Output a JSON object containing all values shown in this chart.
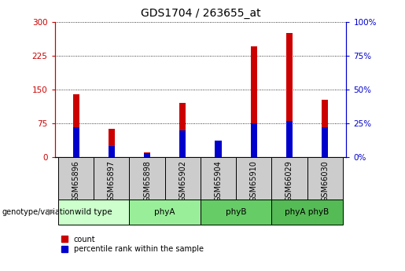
{
  "title": "GDS1704 / 263655_at",
  "samples": [
    "GSM65896",
    "GSM65897",
    "GSM65898",
    "GSM65902",
    "GSM65904",
    "GSM65910",
    "GSM66029",
    "GSM66030"
  ],
  "count_values": [
    140,
    62,
    10,
    120,
    5,
    245,
    275,
    127
  ],
  "percentile_values": [
    22,
    8,
    3,
    20,
    12,
    25,
    27,
    22
  ],
  "groups": [
    {
      "label": "wild type",
      "start": 0,
      "end": 2,
      "color": "#ccffcc"
    },
    {
      "label": "phyA",
      "start": 2,
      "end": 4,
      "color": "#99ee99"
    },
    {
      "label": "phyB",
      "start": 4,
      "end": 6,
      "color": "#66cc66"
    },
    {
      "label": "phyA phyB",
      "start": 6,
      "end": 8,
      "color": "#55bb55"
    }
  ],
  "sample_box_color": "#cccccc",
  "left_axis_color": "#cc0000",
  "right_axis_color": "#0000cc",
  "left_yticks": [
    0,
    75,
    150,
    225,
    300
  ],
  "right_yticks": [
    0,
    25,
    50,
    75,
    100
  ],
  "ylim_left": [
    0,
    300
  ],
  "ylim_right": [
    0,
    100
  ],
  "red_color": "#cc0000",
  "blue_color": "#0000cc",
  "grid_color": "#000000",
  "title_fontsize": 10,
  "tick_fontsize": 7.5,
  "label_fontsize": 7,
  "group_fontsize": 7.5
}
